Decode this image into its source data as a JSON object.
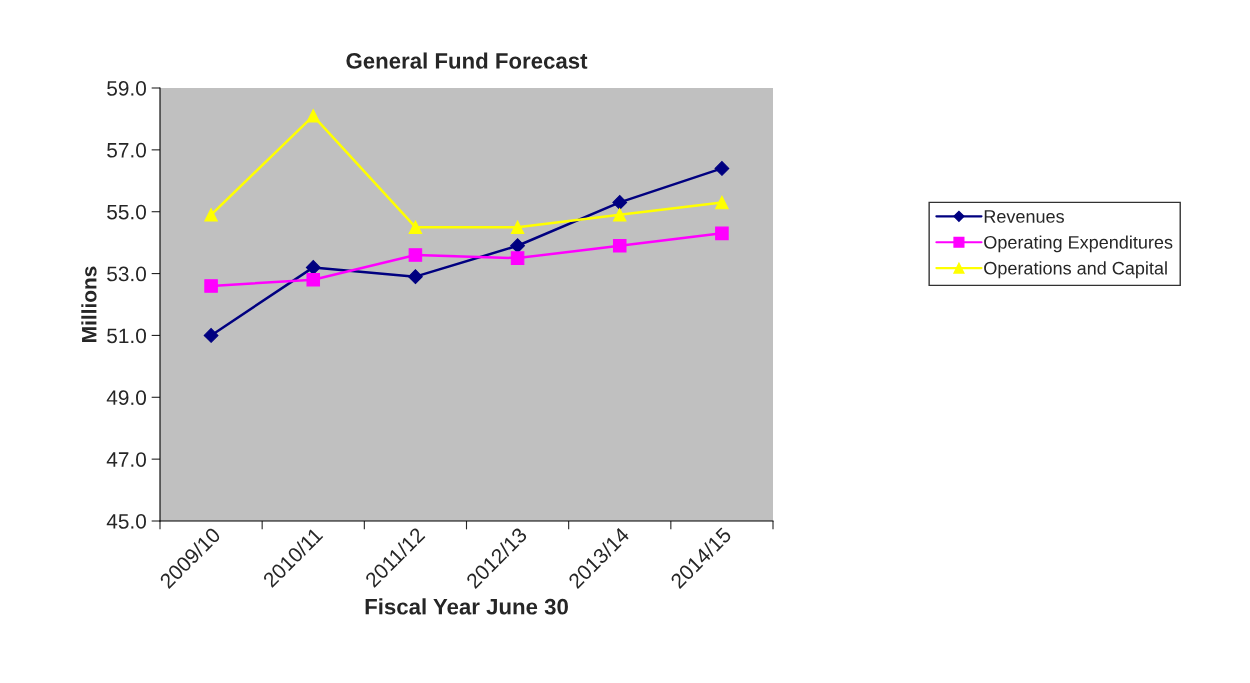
{
  "chart_data": {
    "type": "line",
    "title": "General Fund Forecast",
    "xlabel": "Fiscal Year June 30",
    "ylabel": "Millions",
    "categories": [
      "2009/10",
      "2010/11",
      "2011/12",
      "2012/13",
      "2013/14",
      "2014/15"
    ],
    "series": [
      {
        "name": "Revenues",
        "color": "#000080",
        "marker": "diamond",
        "values": [
          51.0,
          53.2,
          52.9,
          53.9,
          55.3,
          56.4
        ]
      },
      {
        "name": "Operating Expenditures",
        "color": "#ff00ff",
        "marker": "square",
        "values": [
          52.6,
          52.8,
          53.6,
          53.5,
          53.9,
          54.3
        ]
      },
      {
        "name": "Operations and Capital",
        "color": "#ffff00",
        "marker": "triangle",
        "values": [
          54.9,
          58.1,
          54.5,
          54.5,
          54.9,
          55.3
        ]
      }
    ],
    "ylim": [
      45,
      59
    ],
    "yticks": [
      {
        "value": 45,
        "label": "45.0"
      },
      {
        "value": 47,
        "label": "47.0"
      },
      {
        "value": 49,
        "label": "49.0"
      },
      {
        "value": 51,
        "label": "51.0"
      },
      {
        "value": 53,
        "label": "53.0"
      },
      {
        "value": 55,
        "label": "55.0"
      },
      {
        "value": 57,
        "label": "57.0"
      },
      {
        "value": 59,
        "label": "59.0"
      }
    ],
    "grid": false,
    "legend": "right",
    "line_style": "solid"
  }
}
